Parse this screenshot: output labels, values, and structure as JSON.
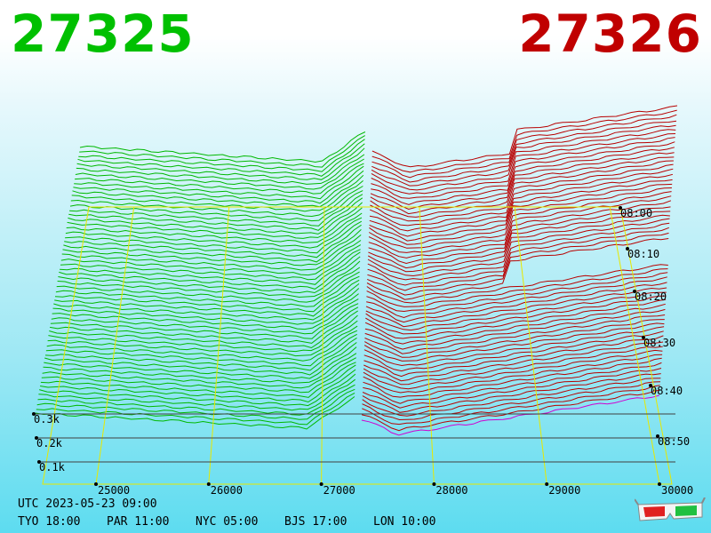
{
  "header": {
    "bid": "27325",
    "ask": "27326"
  },
  "chart_data": {
    "type": "area",
    "description_free": true,
    "x_ticks": [
      "25000",
      "26000",
      "27000",
      "28000",
      "29000",
      "30000"
    ],
    "x_tick_values": [
      25000,
      26000,
      27000,
      28000,
      29000,
      30000
    ],
    "y_ticks": [
      "0.1k",
      "0.2k",
      "0.3k"
    ],
    "y_tick_values": [
      100,
      200,
      300
    ],
    "time_ticks": [
      "08:00",
      "08:10",
      "08:20",
      "08:30",
      "08:40",
      "08:50"
    ],
    "mid_price": 27325.5,
    "series": [
      {
        "side": "bid",
        "color": "#00c000"
      },
      {
        "side": "ask",
        "color": "#c00000"
      }
    ]
  },
  "footer": {
    "utc": "UTC 2023-05-23 09:00",
    "cities": [
      "TYO 18:00",
      "PAR 11:00",
      "NYC 05:00",
      "BJS 17:00",
      "LON 10:00"
    ]
  }
}
